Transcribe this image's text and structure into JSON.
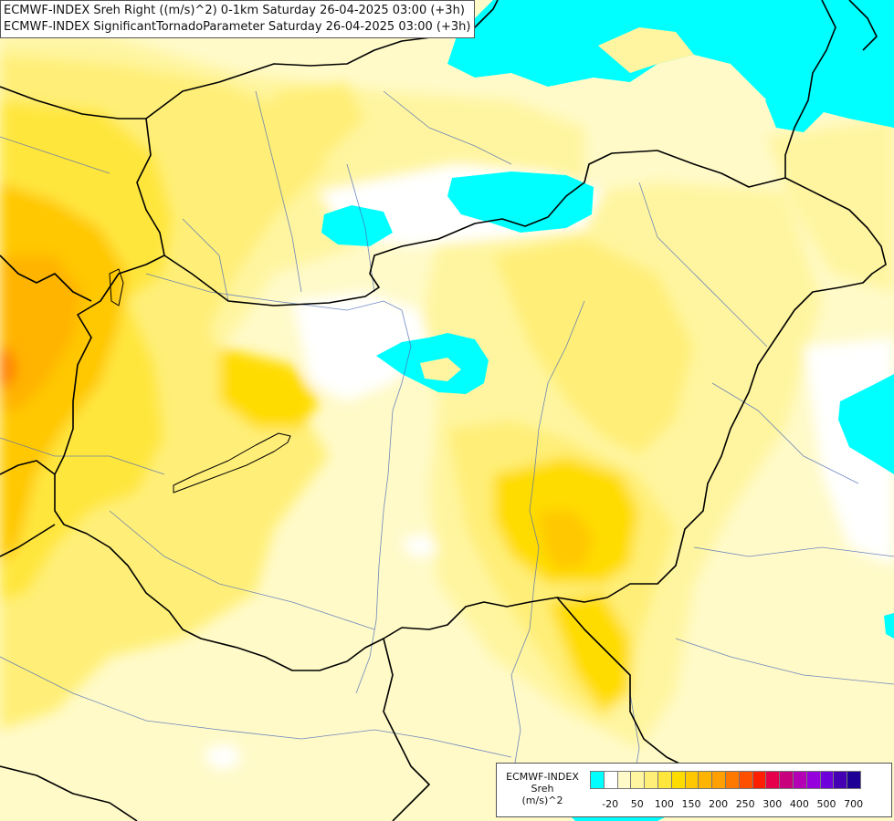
{
  "title": {
    "line1": "ECMWF-INDEX Sreh Right ((m/s)^2) 0-1km Saturday 26-04-2025 03:00 (+3h)",
    "line2": "ECMWF-INDEX SignificantTornadoParameter Saturday 26-04-2025 03:00 (+3h)"
  },
  "legend": {
    "label1": "ECMWF-INDEX",
    "label2": "Sreh",
    "label3": "(m/s)^2",
    "colors": [
      "#00ffff",
      "#ffffff",
      "#fffac8",
      "#fff5a0",
      "#ffef78",
      "#ffe63c",
      "#ffdc00",
      "#ffc800",
      "#ffb400",
      "#ffa000",
      "#ff7800",
      "#ff5000",
      "#ff1e00",
      "#e6004b",
      "#c8007d",
      "#b400b4",
      "#9600dc",
      "#6e00dc",
      "#4600b4",
      "#1e0096"
    ],
    "ticks": [
      "-20",
      "50",
      "100",
      "150",
      "200",
      "250",
      "300",
      "400",
      "500",
      "700"
    ]
  }
}
